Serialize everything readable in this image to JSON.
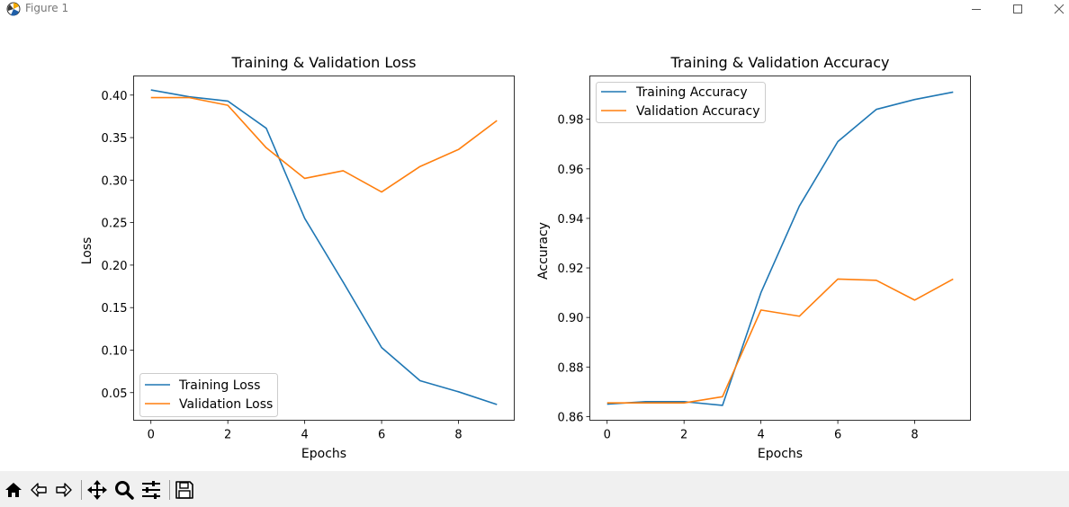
{
  "window": {
    "title": "Figure 1"
  },
  "toolbar": {
    "icons": [
      "home-icon",
      "back-icon",
      "forward-icon",
      "pan-icon",
      "zoom-icon",
      "configure-subplots-icon",
      "save-icon"
    ]
  },
  "colors": {
    "series1": "#1f77b4",
    "series2": "#ff7f0e",
    "toolbar_bg": "#f0f0f0"
  },
  "chart_data": [
    {
      "type": "line",
      "title": "Training & Validation Loss",
      "xlabel": "Epochs",
      "ylabel": "Loss",
      "x": [
        0,
        1,
        2,
        3,
        4,
        5,
        6,
        7,
        8,
        9
      ],
      "xlim": [
        -0.45,
        9.45
      ],
      "ylim": [
        0.0175,
        0.4225
      ],
      "xticks": [
        0,
        2,
        4,
        6,
        8
      ],
      "yticks": [
        0.05,
        0.1,
        0.15,
        0.2,
        0.25,
        0.3,
        0.35,
        0.4
      ],
      "yticklabels": [
        "0.05",
        "0.10",
        "0.15",
        "0.20",
        "0.25",
        "0.30",
        "0.35",
        "0.40"
      ],
      "grid": false,
      "legend": "lower left",
      "series": [
        {
          "name": "Training Loss",
          "color": "#1f77b4",
          "values": [
            0.406,
            0.398,
            0.393,
            0.361,
            0.255,
            0.18,
            0.103,
            0.064,
            0.051,
            0.036
          ]
        },
        {
          "name": "Validation Loss",
          "color": "#ff7f0e",
          "values": [
            0.397,
            0.397,
            0.388,
            0.338,
            0.302,
            0.311,
            0.286,
            0.316,
            0.336,
            0.37
          ]
        }
      ]
    },
    {
      "type": "line",
      "title": "Training & Validation Accuracy",
      "xlabel": "Epochs",
      "ylabel": "Accuracy",
      "x": [
        0,
        1,
        2,
        3,
        4,
        5,
        6,
        7,
        8,
        9
      ],
      "xlim": [
        -0.45,
        9.45
      ],
      "ylim": [
        0.8585,
        0.9975
      ],
      "xticks": [
        0,
        2,
        4,
        6,
        8
      ],
      "yticks": [
        0.86,
        0.88,
        0.9,
        0.92,
        0.94,
        0.96,
        0.98
      ],
      "yticklabels": [
        "0.86",
        "0.88",
        "0.90",
        "0.92",
        "0.94",
        "0.96",
        "0.98"
      ],
      "grid": false,
      "legend": "upper left",
      "series": [
        {
          "name": "Training Accuracy",
          "color": "#1f77b4",
          "values": [
            0.865,
            0.866,
            0.866,
            0.8645,
            0.91,
            0.945,
            0.971,
            0.984,
            0.988,
            0.991
          ]
        },
        {
          "name": "Validation Accuracy",
          "color": "#ff7f0e",
          "values": [
            0.8655,
            0.8655,
            0.8655,
            0.868,
            0.903,
            0.9005,
            0.9155,
            0.915,
            0.907,
            0.9155
          ]
        }
      ]
    }
  ]
}
